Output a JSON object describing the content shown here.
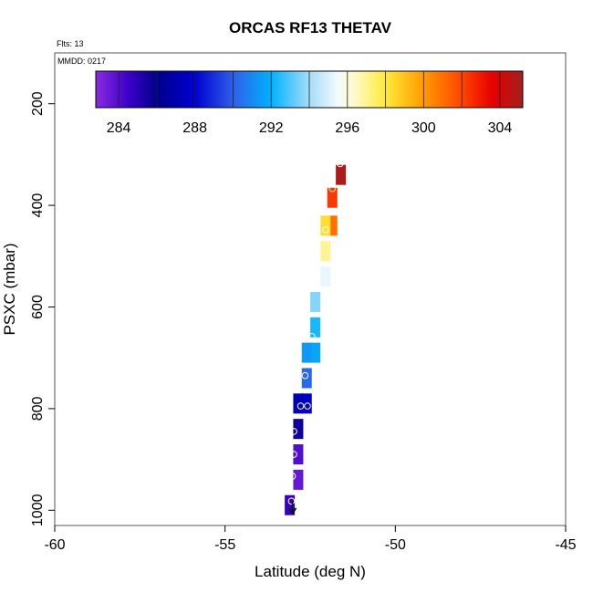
{
  "chart_data": {
    "type": "scatter",
    "title": "ORCAS RF13 THETAV",
    "flights_label": "Flts: 13",
    "date_label": "MMDD: 0217",
    "xlabel": "Latitude (deg N)",
    "ylabel": "PSXC (mbar)",
    "xlim": [
      -60,
      -45
    ],
    "ylim": [
      1030,
      100
    ],
    "x_ticks": [
      -60,
      -55,
      -50,
      -45
    ],
    "y_ticks": [
      200,
      400,
      600,
      800,
      1000
    ],
    "colorbar": {
      "min": 282.8,
      "max": 305.2,
      "ticks": [
        284,
        288,
        292,
        296,
        300,
        304
      ],
      "stops": [
        {
          "v": 282.8,
          "c": "#8a2be2"
        },
        {
          "v": 284.5,
          "c": "#3c00c8"
        },
        {
          "v": 286.0,
          "c": "#00008b"
        },
        {
          "v": 288.0,
          "c": "#0000d0"
        },
        {
          "v": 290.0,
          "c": "#2f5fe8"
        },
        {
          "v": 292.0,
          "c": "#00b2ff"
        },
        {
          "v": 294.0,
          "c": "#a6dcf7"
        },
        {
          "v": 295.5,
          "c": "#f2fbff"
        },
        {
          "v": 296.5,
          "c": "#fff9c0"
        },
        {
          "v": 298.0,
          "c": "#ffea3a"
        },
        {
          "v": 300.0,
          "c": "#ff9a00"
        },
        {
          "v": 302.0,
          "c": "#ff4500"
        },
        {
          "v": 303.6,
          "c": "#e60000"
        },
        {
          "v": 305.2,
          "c": "#a31f1f"
        }
      ]
    },
    "series": [
      {
        "name": "THETAV",
        "points": [
          {
            "lat": -51.6,
            "p": 340,
            "theta": 305.0
          },
          {
            "lat": -51.85,
            "p": 385,
            "theta": 302.3
          },
          {
            "lat": -51.85,
            "p": 440,
            "theta": 301.0
          },
          {
            "lat": -52.05,
            "p": 440,
            "theta": 298.3
          },
          {
            "lat": -52.05,
            "p": 490,
            "theta": 297.0
          },
          {
            "lat": -52.05,
            "p": 540,
            "theta": 295.3
          },
          {
            "lat": -52.35,
            "p": 590,
            "theta": 293.6
          },
          {
            "lat": -52.35,
            "p": 640,
            "theta": 292.3
          },
          {
            "lat": -52.35,
            "p": 690,
            "theta": 291.7
          },
          {
            "lat": -52.6,
            "p": 690,
            "theta": 291.4
          },
          {
            "lat": -52.6,
            "p": 740,
            "theta": 290.2
          },
          {
            "lat": -52.85,
            "p": 790,
            "theta": 287.3
          },
          {
            "lat": -52.6,
            "p": 790,
            "theta": 287.6
          },
          {
            "lat": -52.85,
            "p": 840,
            "theta": 285.6
          },
          {
            "lat": -52.85,
            "p": 890,
            "theta": 284.0
          },
          {
            "lat": -52.85,
            "p": 940,
            "theta": 283.6
          },
          {
            "lat": -53.1,
            "p": 990,
            "theta": 284.6
          }
        ],
        "markers": [
          {
            "lat": -51.62,
            "p": 318
          },
          {
            "lat": -51.85,
            "p": 367
          },
          {
            "lat": -52.05,
            "p": 448
          },
          {
            "lat": -52.45,
            "p": 658
          },
          {
            "lat": -52.65,
            "p": 735
          },
          {
            "lat": -52.78,
            "p": 795
          },
          {
            "lat": -52.58,
            "p": 795
          },
          {
            "lat": -52.98,
            "p": 845
          },
          {
            "lat": -52.98,
            "p": 890
          },
          {
            "lat": -53.02,
            "p": 933
          },
          {
            "lat": -53.05,
            "p": 982
          }
        ],
        "arrow": {
          "lat": -53.02,
          "p": 985
        }
      }
    ]
  }
}
